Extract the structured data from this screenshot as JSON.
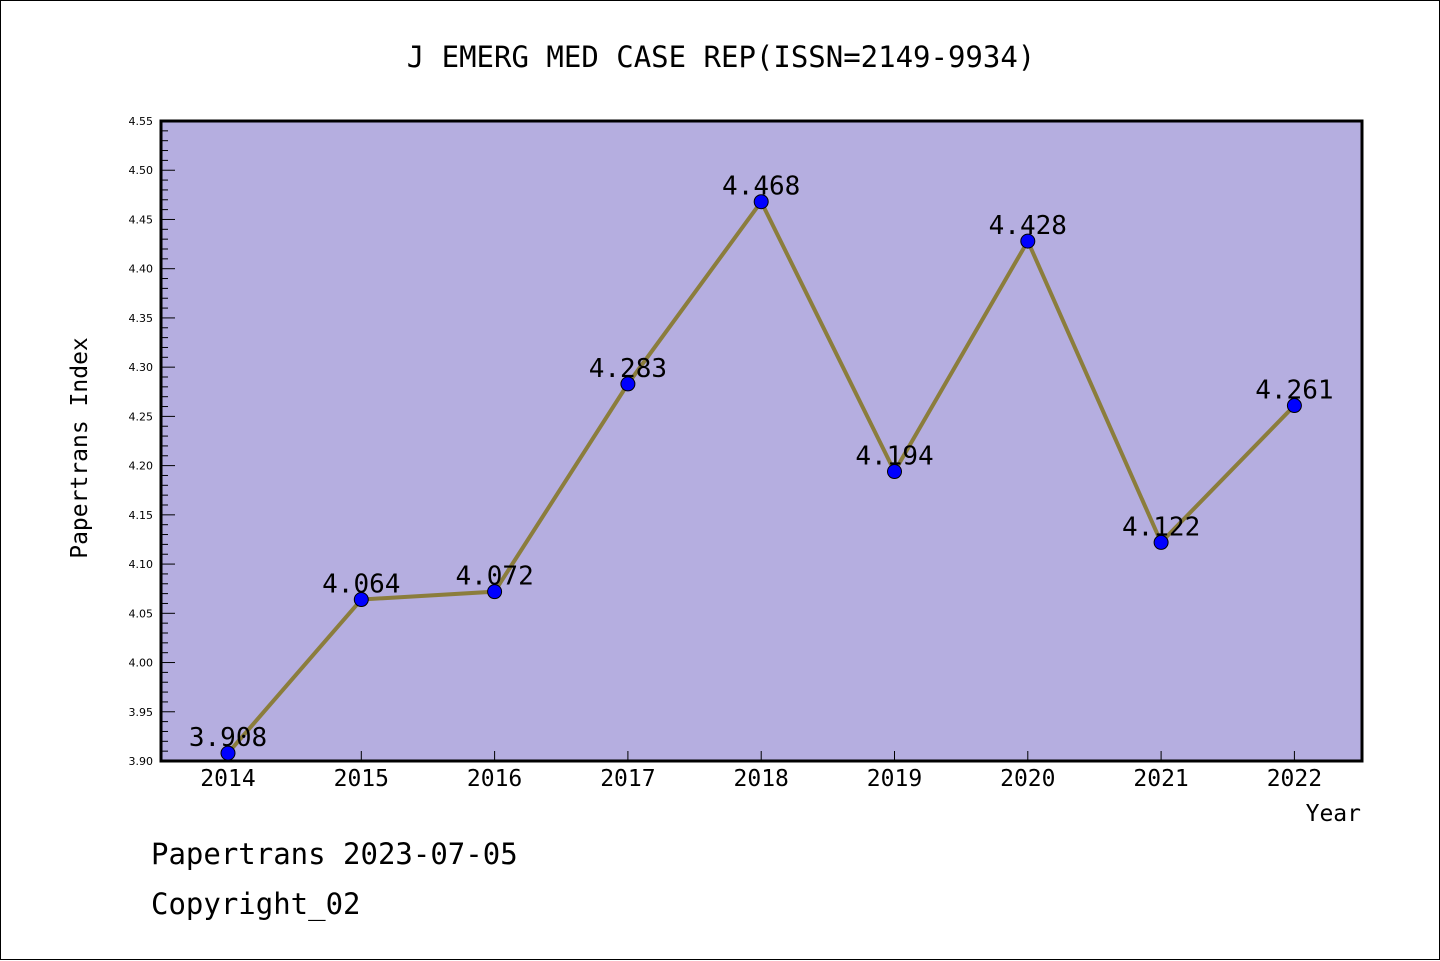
{
  "chart_data": {
    "type": "line",
    "title": "J EMERG MED CASE REP(ISSN=2149-9934)",
    "xlabel": "Year",
    "ylabel": "Papertrans Index",
    "x": [
      "2014",
      "2015",
      "2016",
      "2017",
      "2018",
      "2019",
      "2020",
      "2021",
      "2022"
    ],
    "values": [
      3.908,
      4.064,
      4.072,
      4.283,
      4.468,
      4.194,
      4.428,
      4.122,
      4.261
    ],
    "data_labels": [
      "3.908",
      "4.064",
      "4.072",
      "4.283",
      "4.468",
      "4.194",
      "4.428",
      "4.122",
      "4.261"
    ],
    "ylim": [
      3.9,
      4.55
    ],
    "y_ticks": [
      "3.90",
      "3.95",
      "4.00",
      "4.05",
      "4.10",
      "4.15",
      "4.20",
      "4.25",
      "4.30",
      "4.35",
      "4.40",
      "4.45",
      "4.50",
      "4.55"
    ],
    "grid": false,
    "colors": {
      "plot_background": "#b5aee0",
      "line": "#8b7d3c",
      "marker": "#0000ff"
    }
  },
  "footer": {
    "line1": "Papertrans 2023-07-05",
    "line2": "Copyright_02"
  }
}
